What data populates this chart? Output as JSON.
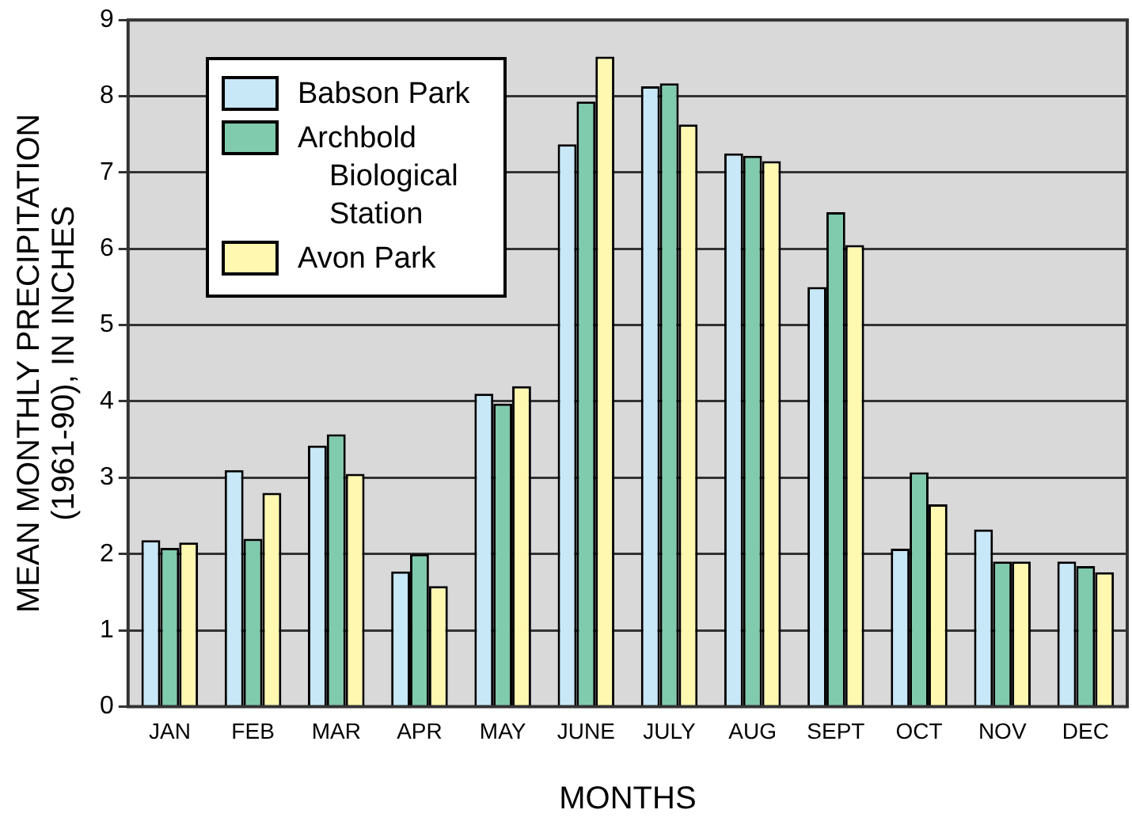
{
  "chart_data": {
    "type": "bar",
    "xlabel": "MONTHS",
    "ylabel": "MEAN MONTHLY PRECIPITATION\n(1961-90), IN INCHES",
    "categories": [
      "JAN",
      "FEB",
      "MAR",
      "APR",
      "MAY",
      "JUNE",
      "JULY",
      "AUG",
      "SEPT",
      "OCT",
      "NOV",
      "DEC"
    ],
    "series": [
      {
        "name": "Babson Park",
        "color": "#c8e8f8",
        "values": [
          2.18,
          3.1,
          3.42,
          1.77,
          4.1,
          7.37,
          8.13,
          7.25,
          5.5,
          2.07,
          2.32,
          1.9
        ]
      },
      {
        "name": "Archbold Biological Station",
        "color": "#80cbad",
        "values": [
          2.08,
          2.2,
          3.57,
          2.0,
          3.97,
          7.93,
          8.17,
          7.22,
          6.48,
          3.07,
          1.9,
          1.84
        ]
      },
      {
        "name": "Avon Park",
        "color": "#fff8b0",
        "values": [
          2.15,
          2.8,
          3.05,
          1.58,
          4.2,
          8.52,
          7.63,
          7.15,
          6.05,
          2.65,
          1.9,
          1.76
        ]
      }
    ],
    "ylim": [
      0,
      9
    ],
    "yticks": [
      0,
      1,
      2,
      3,
      4,
      5,
      6,
      7,
      8,
      9
    ],
    "grid": "y",
    "legend": "top left"
  }
}
